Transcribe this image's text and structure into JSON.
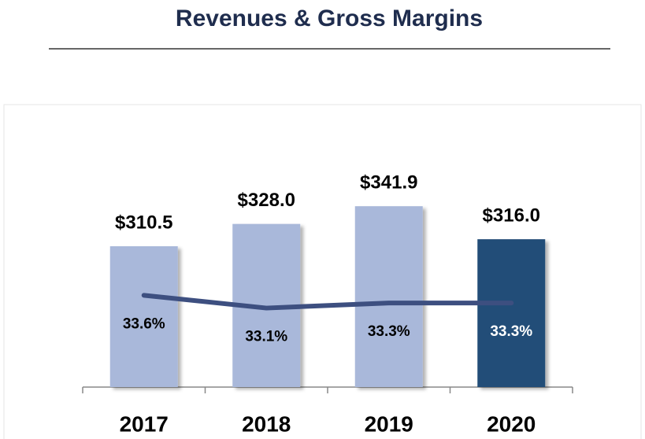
{
  "chart_data": {
    "type": "combo",
    "title": "Revenues & Gross Margins",
    "categories": [
      "2017",
      "2018",
      "2019",
      "2020"
    ],
    "series": [
      {
        "type": "bar",
        "values": [
          310.5,
          328.0,
          341.9,
          316.0
        ],
        "value_labels": [
          "$310.5",
          "$328.0",
          "$341.9",
          "$316.0"
        ],
        "colors": [
          "#a9b8da",
          "#a9b8da",
          "#a9b8da",
          "#234e78"
        ]
      },
      {
        "type": "line",
        "axis": "y2",
        "color": "#3d4f80",
        "values": [
          33.6,
          33.1,
          33.3,
          33.3
        ],
        "value_labels": [
          "33.6%",
          "33.1%",
          "33.3%",
          "33.3%"
        ],
        "value_label_colors": [
          "#000000",
          "#000000",
          "#000000",
          "#ffffff"
        ]
      }
    ],
    "ylim": [
      200,
      400
    ],
    "y2lim": [
      30,
      40
    ]
  }
}
